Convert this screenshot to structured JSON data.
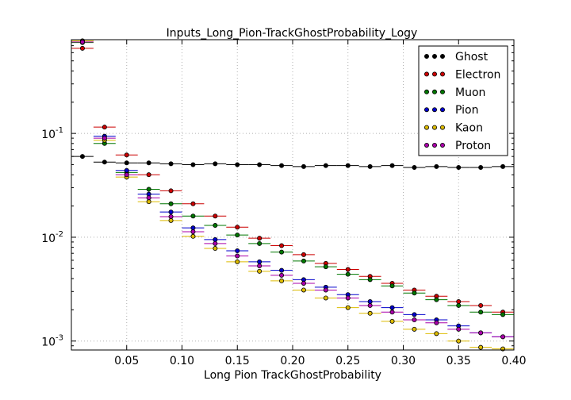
{
  "chart_data": {
    "type": "scatter",
    "title": "Inputs_Long_Pion-TrackGhostProbability_Logy",
    "xlabel": "Long Pion TrackGhostProbability",
    "ylabel": "",
    "xlim": [
      0.0,
      0.4
    ],
    "ylim": [
      0.00082,
      0.8
    ],
    "yscale": "log",
    "grid": true,
    "legend_position": "top-right",
    "x_ticks": [
      {
        "value": 0.05,
        "label": "0.05"
      },
      {
        "value": 0.1,
        "label": "0.10"
      },
      {
        "value": 0.15,
        "label": "0.15"
      },
      {
        "value": 0.2,
        "label": "0.20"
      },
      {
        "value": 0.25,
        "label": "0.25"
      },
      {
        "value": 0.3,
        "label": "0.30"
      },
      {
        "value": 0.35,
        "label": "0.35"
      },
      {
        "value": 0.4,
        "label": "0.40"
      }
    ],
    "y_ticks": [
      {
        "value": 0.001,
        "label": "10",
        "exp": "-3"
      },
      {
        "value": 0.01,
        "label": "10",
        "exp": "-2"
      },
      {
        "value": 0.1,
        "label": "10",
        "exp": "-1"
      }
    ],
    "x": [
      0.01,
      0.03,
      0.05,
      0.07,
      0.09,
      0.11,
      0.13,
      0.15,
      0.17,
      0.19,
      0.21,
      0.23,
      0.25,
      0.27,
      0.29,
      0.31,
      0.33,
      0.35,
      0.37,
      0.39
    ],
    "bin_half_width": 0.01,
    "series": [
      {
        "name": "Ghost",
        "color": "#000000",
        "values": [
          0.06,
          0.053,
          0.052,
          0.052,
          0.051,
          0.05,
          0.051,
          0.05,
          0.05,
          0.049,
          0.048,
          0.049,
          0.049,
          0.048,
          0.049,
          0.047,
          0.048,
          0.047,
          0.047,
          0.048
        ]
      },
      {
        "name": "Electron",
        "color": "#cc0000",
        "values": [
          0.66,
          0.115,
          0.062,
          0.04,
          0.028,
          0.021,
          0.016,
          0.0125,
          0.0098,
          0.0083,
          0.0068,
          0.0056,
          0.0049,
          0.0042,
          0.0036,
          0.0031,
          0.0027,
          0.0024,
          0.0022,
          0.0019
        ]
      },
      {
        "name": "Muon",
        "color": "#007700",
        "values": [
          0.75,
          0.08,
          0.042,
          0.029,
          0.021,
          0.016,
          0.013,
          0.0105,
          0.0087,
          0.0072,
          0.0059,
          0.0052,
          0.0044,
          0.0039,
          0.0034,
          0.0029,
          0.0025,
          0.0022,
          0.0019,
          0.0018
        ]
      },
      {
        "name": "Pion",
        "color": "#0000cc",
        "values": [
          0.78,
          0.094,
          0.044,
          0.026,
          0.0175,
          0.0123,
          0.0095,
          0.0074,
          0.0058,
          0.0048,
          0.0039,
          0.0033,
          0.0028,
          0.0024,
          0.0021,
          0.0018,
          0.0016,
          0.0014,
          0.0012,
          0.0011
        ]
      },
      {
        "name": "Kaon",
        "color": "#ddbb00",
        "values": [
          0.78,
          0.086,
          0.038,
          0.022,
          0.0145,
          0.0102,
          0.0078,
          0.0058,
          0.0047,
          0.0038,
          0.0031,
          0.0026,
          0.0021,
          0.00185,
          0.00155,
          0.0013,
          0.00118,
          0.001,
          0.00087,
          0.00084
        ]
      },
      {
        "name": "Proton",
        "color": "#aa00aa",
        "values": [
          0.76,
          0.09,
          0.04,
          0.024,
          0.0158,
          0.0113,
          0.0087,
          0.0066,
          0.0053,
          0.0043,
          0.0036,
          0.0031,
          0.0026,
          0.0022,
          0.0019,
          0.0016,
          0.0015,
          0.0013,
          0.0012,
          0.0011
        ]
      }
    ]
  }
}
